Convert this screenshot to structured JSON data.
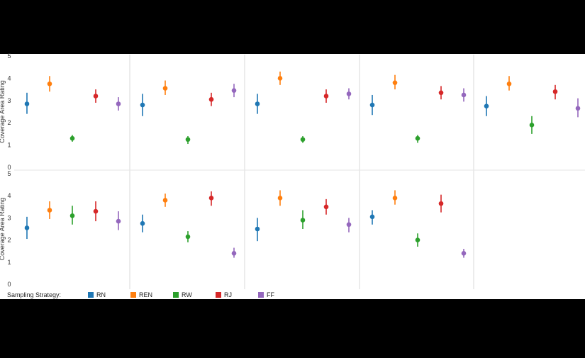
{
  "chart_data": {
    "type": "scatter",
    "description_type": "small-multiples point estimates with error bars",
    "ylabel": "Coverage Area Rating",
    "ylim": [
      0,
      5
    ],
    "yticks": [
      "0",
      "1",
      "2",
      "3",
      "4",
      "5"
    ],
    "grid": false,
    "legend": {
      "title": "Sampling Strategy:",
      "placement": "bottom",
      "entries": [
        {
          "name": "RN",
          "color": "#1f77b4"
        },
        {
          "name": "REN",
          "color": "#ff7f0e"
        },
        {
          "name": "RW",
          "color": "#2ca02c"
        },
        {
          "name": "RJ",
          "color": "#d62728"
        },
        {
          "name": "FF",
          "color": "#9467bd"
        }
      ]
    },
    "panels": [
      {
        "row": 0,
        "col": 0,
        "series": [
          {
            "name": "RN",
            "mean": 2.85,
            "low": 2.4,
            "high": 3.35
          },
          {
            "name": "REN",
            "mean": 3.75,
            "low": 3.4,
            "high": 4.1
          },
          {
            "name": "RW",
            "mean": 1.3,
            "low": 1.15,
            "high": 1.45
          },
          {
            "name": "RJ",
            "mean": 3.2,
            "low": 2.9,
            "high": 3.5
          },
          {
            "name": "FF",
            "mean": 2.85,
            "low": 2.55,
            "high": 3.15
          }
        ]
      },
      {
        "row": 0,
        "col": 1,
        "series": [
          {
            "name": "RN",
            "mean": 2.8,
            "low": 2.3,
            "high": 3.3
          },
          {
            "name": "REN",
            "mean": 3.55,
            "low": 3.25,
            "high": 3.9
          },
          {
            "name": "RW",
            "mean": 1.25,
            "low": 1.05,
            "high": 1.4
          },
          {
            "name": "RJ",
            "mean": 3.05,
            "low": 2.75,
            "high": 3.35
          },
          {
            "name": "FF",
            "mean": 3.45,
            "low": 3.15,
            "high": 3.75
          }
        ]
      },
      {
        "row": 0,
        "col": 2,
        "series": [
          {
            "name": "RN",
            "mean": 2.85,
            "low": 2.4,
            "high": 3.3
          },
          {
            "name": "REN",
            "mean": 4.0,
            "low": 3.7,
            "high": 4.3
          },
          {
            "name": "RW",
            "mean": 1.25,
            "low": 1.1,
            "high": 1.4
          },
          {
            "name": "RJ",
            "mean": 3.2,
            "low": 2.9,
            "high": 3.5
          },
          {
            "name": "FF",
            "mean": 3.3,
            "low": 3.05,
            "high": 3.55
          }
        ]
      },
      {
        "row": 0,
        "col": 3,
        "series": [
          {
            "name": "RN",
            "mean": 2.8,
            "low": 2.35,
            "high": 3.25
          },
          {
            "name": "REN",
            "mean": 3.8,
            "low": 3.5,
            "high": 4.15
          },
          {
            "name": "RW",
            "mean": 1.3,
            "low": 1.1,
            "high": 1.45
          },
          {
            "name": "RJ",
            "mean": 3.35,
            "low": 3.05,
            "high": 3.65
          },
          {
            "name": "FF",
            "mean": 3.25,
            "low": 2.95,
            "high": 3.55
          }
        ]
      },
      {
        "row": 0,
        "col": 4,
        "series": [
          {
            "name": "RN",
            "mean": 2.75,
            "low": 2.3,
            "high": 3.2
          },
          {
            "name": "REN",
            "mean": 3.75,
            "low": 3.45,
            "high": 4.1
          },
          {
            "name": "RW",
            "mean": 1.9,
            "low": 1.5,
            "high": 2.3
          },
          {
            "name": "RJ",
            "mean": 3.4,
            "low": 3.05,
            "high": 3.7
          },
          {
            "name": "FF",
            "mean": 2.65,
            "low": 2.25,
            "high": 3.1
          }
        ]
      },
      {
        "row": 1,
        "col": 0,
        "series": [
          {
            "name": "RN",
            "mean": 2.55,
            "low": 2.05,
            "high": 3.05
          },
          {
            "name": "REN",
            "mean": 3.35,
            "low": 2.95,
            "high": 3.75
          },
          {
            "name": "RW",
            "mean": 3.1,
            "low": 2.7,
            "high": 3.55
          },
          {
            "name": "RJ",
            "mean": 3.3,
            "low": 2.85,
            "high": 3.75
          },
          {
            "name": "FF",
            "mean": 2.85,
            "low": 2.45,
            "high": 3.3
          }
        ]
      },
      {
        "row": 1,
        "col": 1,
        "series": [
          {
            "name": "RN",
            "mean": 2.75,
            "low": 2.35,
            "high": 3.15
          },
          {
            "name": "REN",
            "mean": 3.8,
            "low": 3.5,
            "high": 4.1
          },
          {
            "name": "RW",
            "mean": 2.15,
            "low": 1.9,
            "high": 2.4
          },
          {
            "name": "RJ",
            "mean": 3.9,
            "low": 3.55,
            "high": 4.2
          },
          {
            "name": "FF",
            "mean": 1.4,
            "low": 1.2,
            "high": 1.65
          }
        ]
      },
      {
        "row": 1,
        "col": 2,
        "series": [
          {
            "name": "RN",
            "mean": 2.5,
            "low": 1.95,
            "high": 3.0
          },
          {
            "name": "REN",
            "mean": 3.9,
            "low": 3.55,
            "high": 4.25
          },
          {
            "name": "RW",
            "mean": 2.9,
            "low": 2.5,
            "high": 3.35
          },
          {
            "name": "RJ",
            "mean": 3.5,
            "low": 3.15,
            "high": 3.85
          },
          {
            "name": "FF",
            "mean": 2.7,
            "low": 2.35,
            "high": 3.0
          }
        ]
      },
      {
        "row": 1,
        "col": 3,
        "series": [
          {
            "name": "RN",
            "mean": 3.05,
            "low": 2.7,
            "high": 3.35
          },
          {
            "name": "REN",
            "mean": 3.9,
            "low": 3.6,
            "high": 4.25
          },
          {
            "name": "RW",
            "mean": 2.0,
            "low": 1.7,
            "high": 2.3
          },
          {
            "name": "RJ",
            "mean": 3.65,
            "low": 3.25,
            "high": 4.05
          },
          {
            "name": "FF",
            "mean": 1.4,
            "low": 1.2,
            "high": 1.6
          }
        ]
      }
    ]
  }
}
